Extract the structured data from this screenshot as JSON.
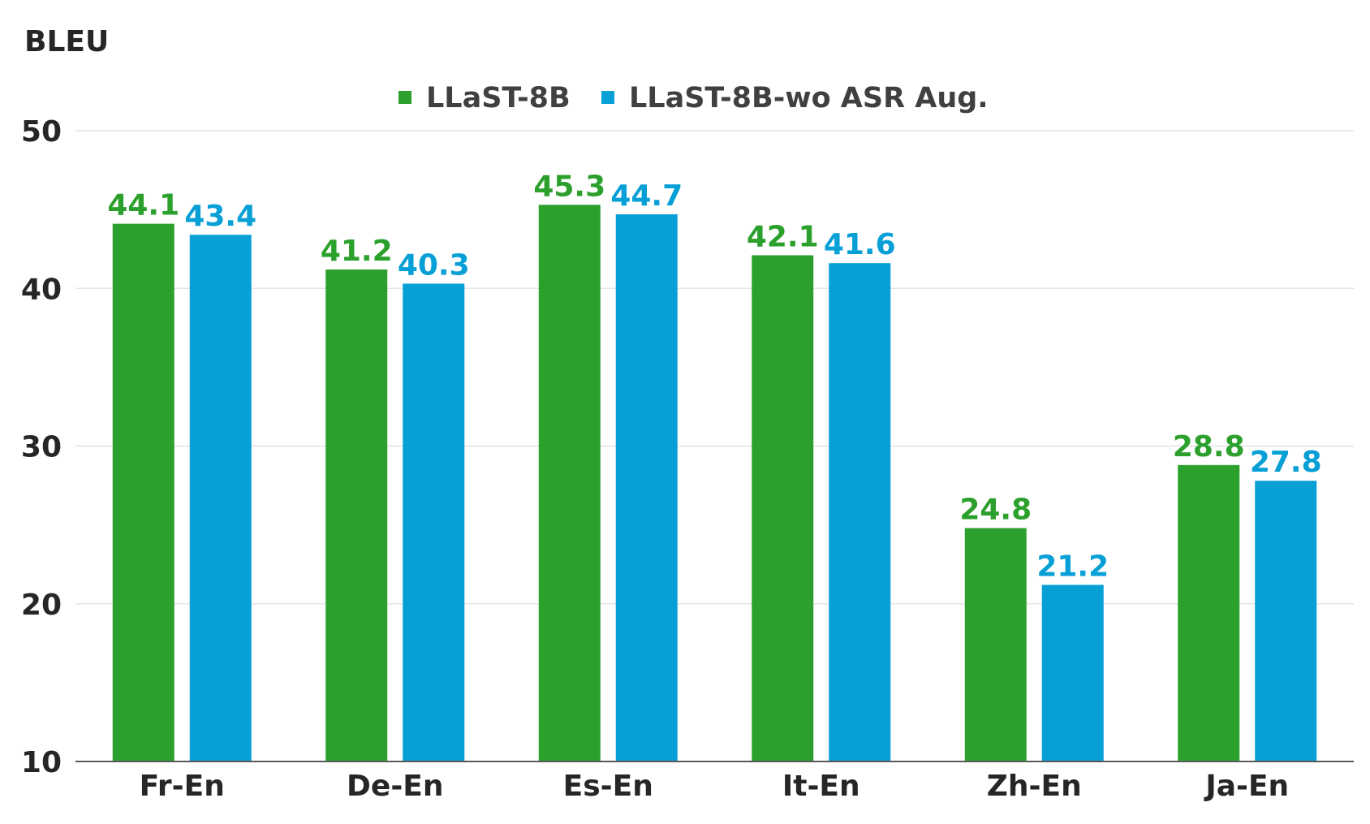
{
  "chart_data": {
    "type": "bar",
    "title": "",
    "xlabel": "",
    "ylabel": "BLEU",
    "ylim": [
      10,
      50
    ],
    "yticks": [
      10,
      20,
      30,
      40,
      50
    ],
    "grid": true,
    "legend_position": "top-center",
    "categories": [
      "Fr-En",
      "De-En",
      "Es-En",
      "It-En",
      "Zh-En",
      "Ja-En"
    ],
    "series": [
      {
        "name": "LLaST-8B",
        "color": "#2ca02c",
        "values": [
          44.1,
          41.2,
          45.3,
          42.1,
          24.8,
          28.8
        ]
      },
      {
        "name": "LLaST-8B-wo ASR Aug.",
        "color": "#069fd6",
        "values": [
          43.4,
          40.3,
          44.7,
          41.6,
          21.2,
          27.8
        ]
      }
    ]
  }
}
